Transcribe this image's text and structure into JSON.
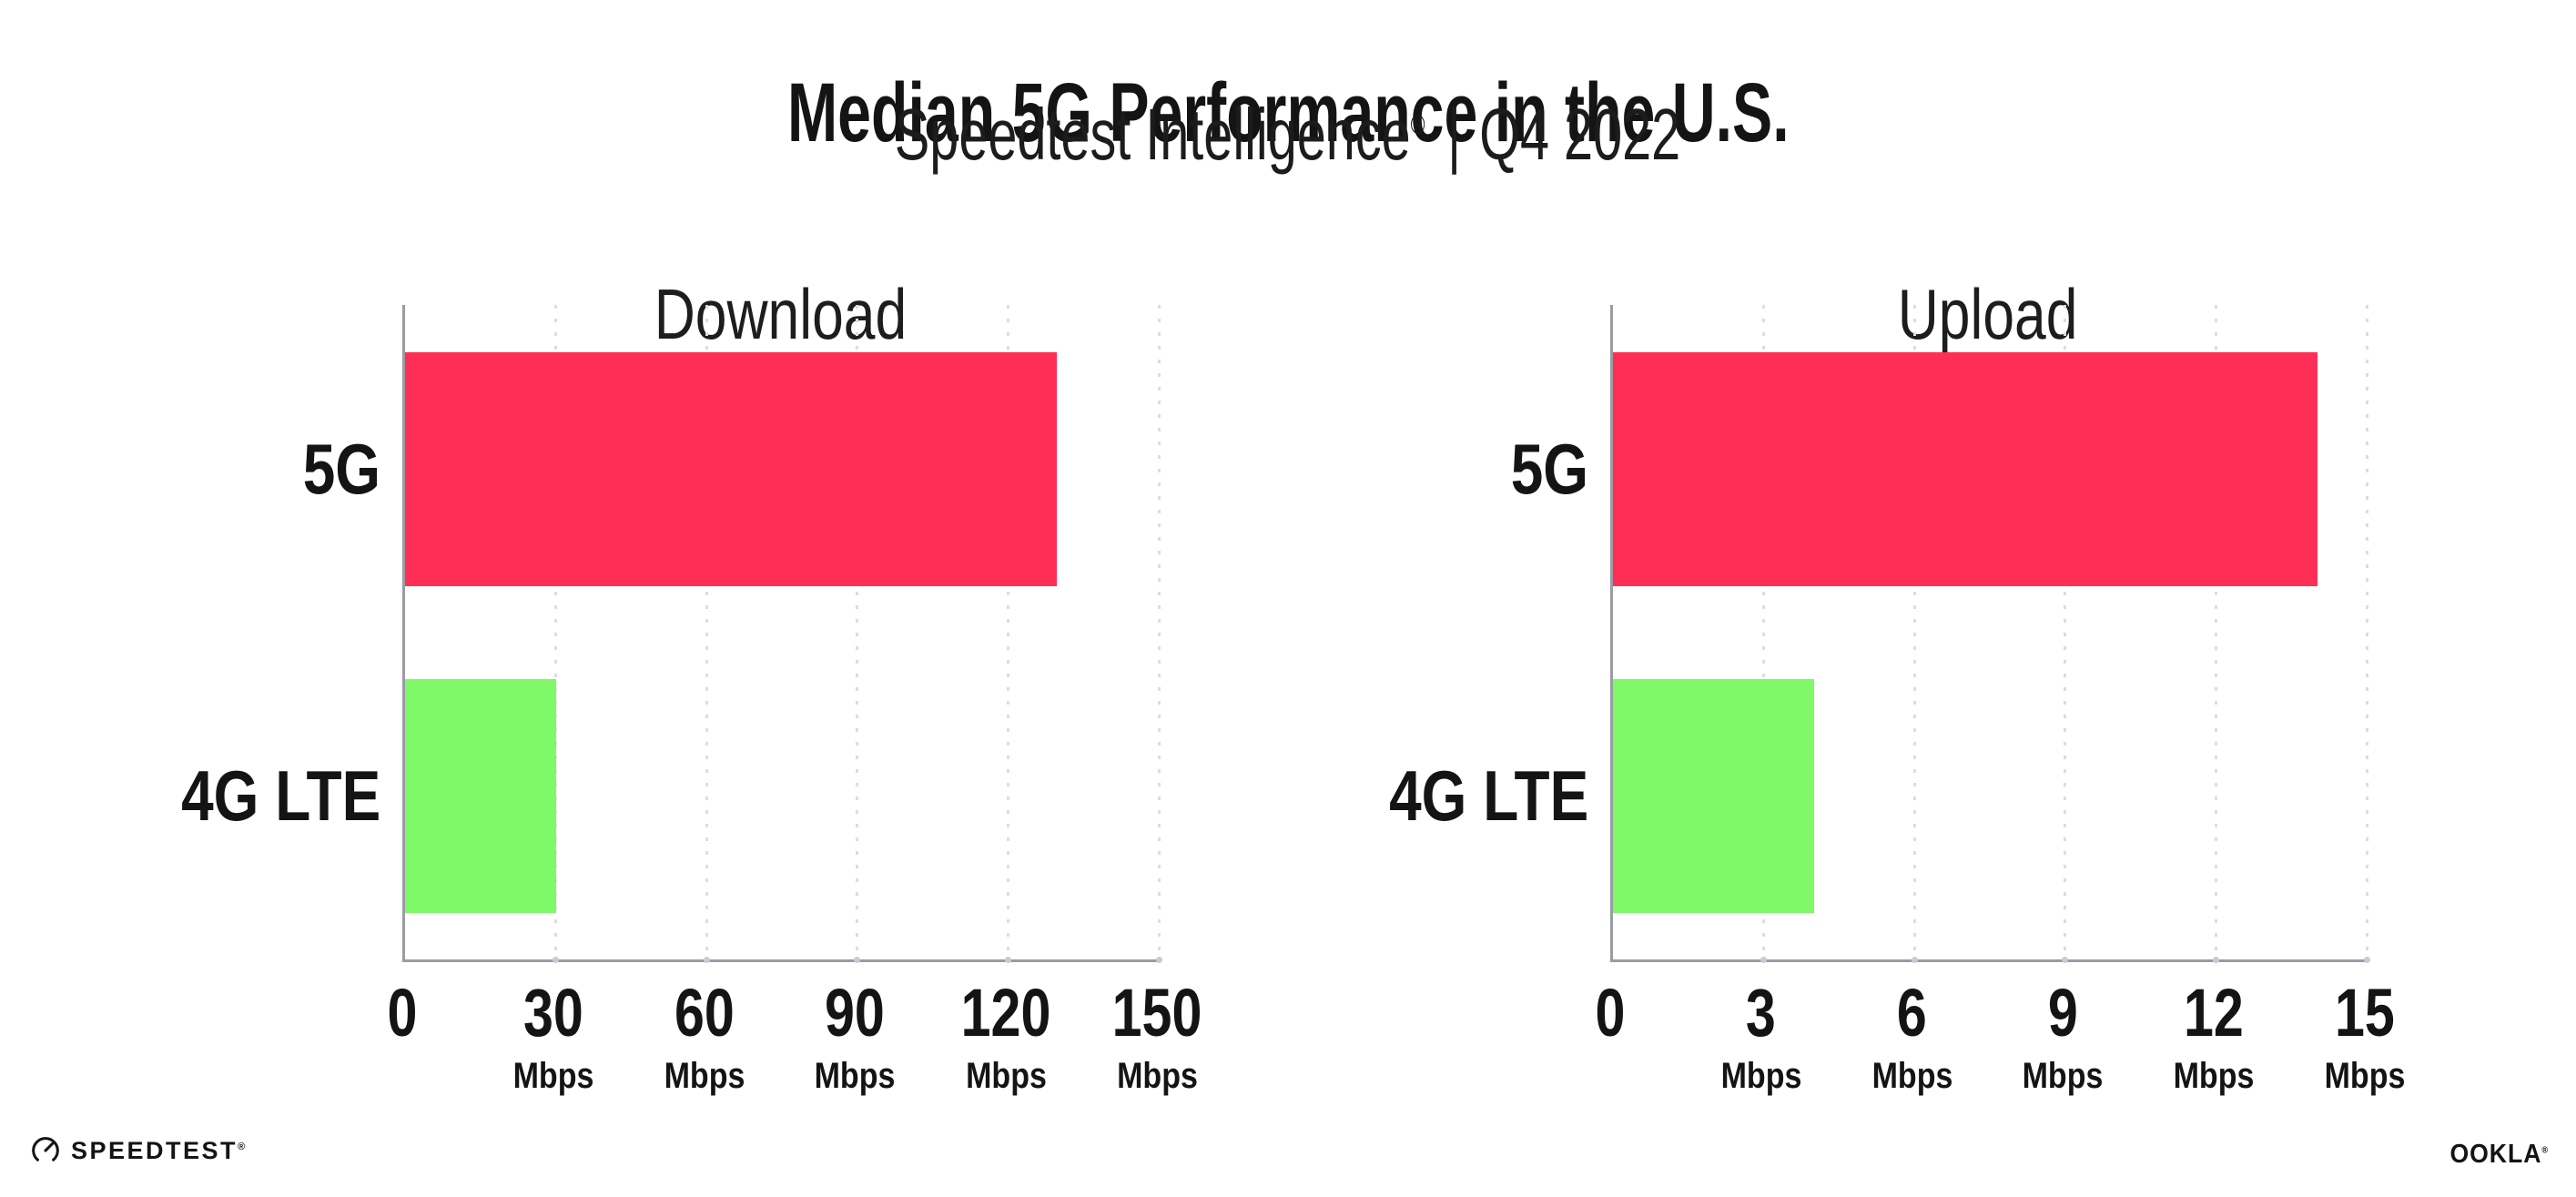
{
  "header": {
    "title": "Median 5G Performance in the U.S.",
    "subtitle_brand": "Speedtest Intelligence",
    "subtitle_registered_mark": "®",
    "subtitle_separator": "|",
    "subtitle_period": "Q4 2022"
  },
  "colors": {
    "bar_5g": "#ff2e56",
    "bar_4g_lte": "#80f968",
    "axis": "#9b9ba3",
    "gridline": "#dcdce8",
    "text": "#141414"
  },
  "chart_data": [
    {
      "type": "bar",
      "orientation": "horizontal",
      "title": "Download",
      "categories": [
        "5G",
        "4G LTE"
      ],
      "values": [
        129.5,
        30
      ],
      "value_unit": "Mbps",
      "xlim": [
        0,
        150
      ],
      "xticks": [
        0,
        30,
        60,
        90,
        120,
        150
      ],
      "tick_unit_label": "Mbps",
      "bar_colors": [
        "#ff2e56",
        "#80f968"
      ],
      "grid": "vertical-dotted",
      "legend": "none"
    },
    {
      "type": "bar",
      "orientation": "horizontal",
      "title": "Upload",
      "categories": [
        "5G",
        "4G LTE"
      ],
      "values": [
        14,
        4
      ],
      "value_unit": "Mbps",
      "xlim": [
        0,
        15
      ],
      "xticks": [
        0,
        3,
        6,
        9,
        12,
        15
      ],
      "tick_unit_label": "Mbps",
      "bar_colors": [
        "#ff2e56",
        "#80f968"
      ],
      "grid": "vertical-dotted",
      "legend": "none"
    }
  ],
  "footer": {
    "speedtest_logo_text": "SPEEDTEST",
    "speedtest_trademark": "®",
    "ookla_logo_text": "OOKLA",
    "ookla_trademark": "®"
  }
}
